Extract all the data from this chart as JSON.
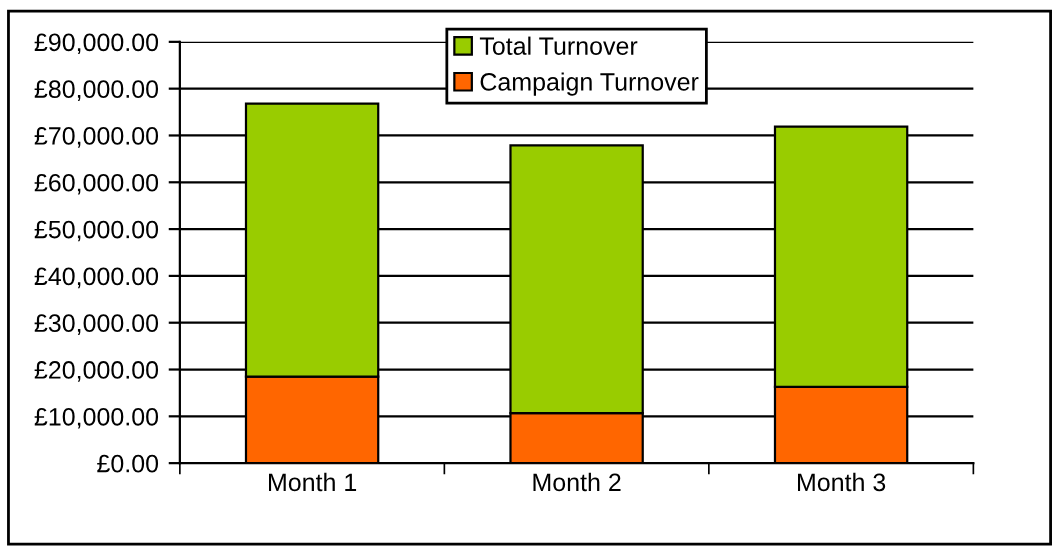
{
  "chart_data": {
    "type": "bar",
    "stacked": true,
    "categories": [
      "Month 1",
      "Month 2",
      "Month 3"
    ],
    "series": [
      {
        "name": "Campaign Turnover",
        "color": "#ff6600",
        "values": [
          18500,
          10700,
          16300
        ]
      },
      {
        "name": "Total Turnover",
        "color": "#99cc00",
        "values": [
          58300,
          57200,
          55600
        ]
      }
    ],
    "ylim": [
      0,
      90000
    ],
    "yticks": [
      {
        "value": 0,
        "label": "£0.00"
      },
      {
        "value": 10000,
        "label": "£10,000.00"
      },
      {
        "value": 20000,
        "label": "£20,000.00"
      },
      {
        "value": 30000,
        "label": "£30,000.00"
      },
      {
        "value": 40000,
        "label": "£40,000.00"
      },
      {
        "value": 50000,
        "label": "£50,000.00"
      },
      {
        "value": 60000,
        "label": "£60,000.00"
      },
      {
        "value": 70000,
        "label": "£70,000.00"
      },
      {
        "value": 80000,
        "label": "£80,000.00"
      },
      {
        "value": 90000,
        "label": "£90,000.00"
      }
    ],
    "grid": "y",
    "legend": "top"
  }
}
